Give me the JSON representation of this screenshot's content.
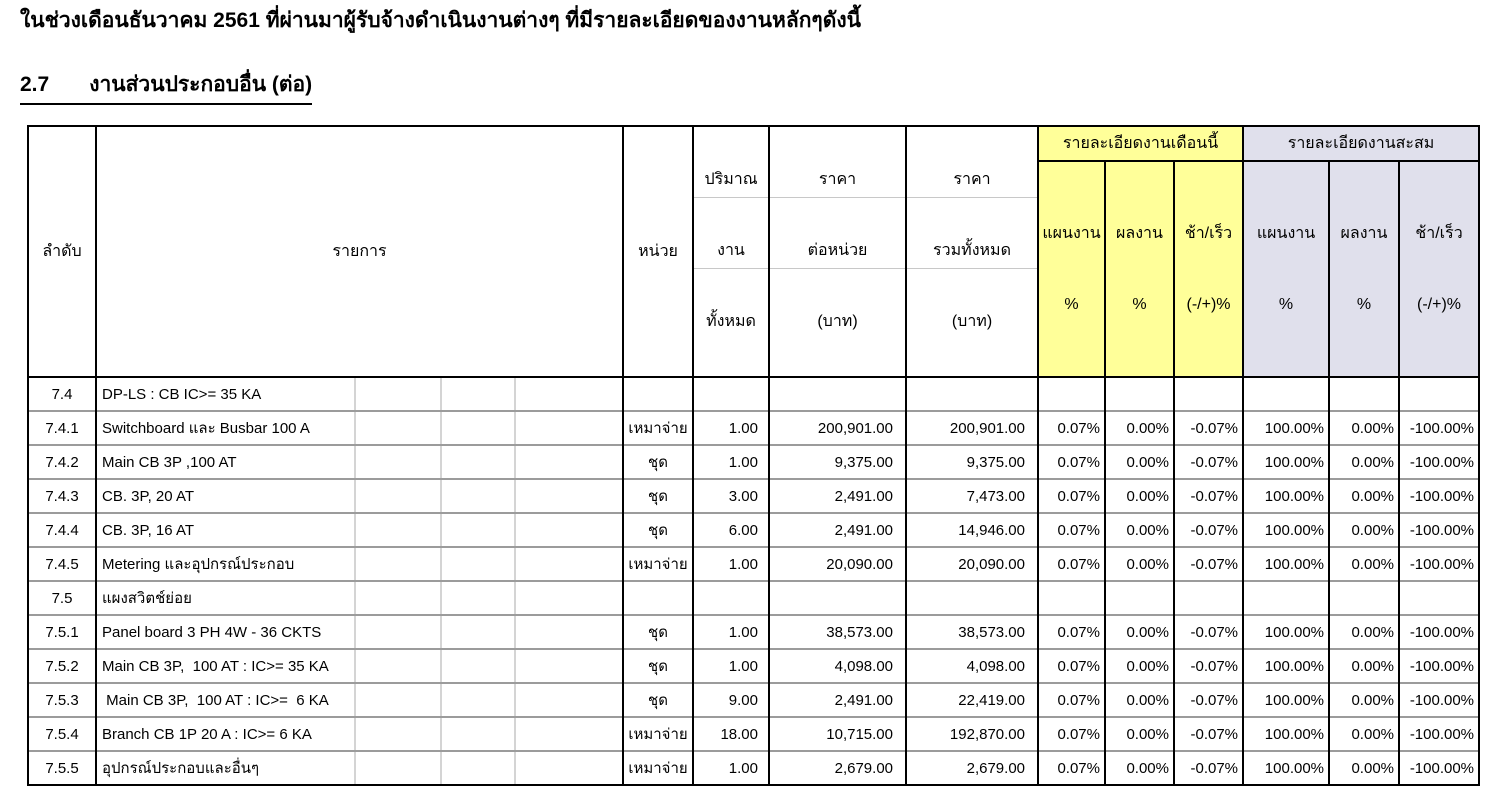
{
  "page": {
    "intro": "ในช่วงเดือนธันวาคม 2561 ที่ผ่านมาผู้รับจ้างดำเนินงานต่างๆ ที่มีรายละเอียดของงานหลักๆดังนี้",
    "section_number": "2.7",
    "section_title": "งานส่วนประกอบอื่น (ต่อ)"
  },
  "table": {
    "headers": {
      "no": "ลำดับ",
      "item": "รายการ",
      "unit": "หน่วย",
      "qty_lines": [
        "ปริมาณ",
        "งาน",
        "ทั้งหมด"
      ],
      "unit_price_lines": [
        "ราคา",
        "ต่อหน่วย",
        "(บาท)"
      ],
      "total_price_lines": [
        "ราคา",
        "รวมทั้งหมด",
        "(บาท)"
      ],
      "month_group": "รายละเอียดงานเดือนนี้",
      "cum_group": "รายละเอียดงานสะสม",
      "plan": "แผนงาน",
      "actual": "ผลงาน",
      "diff": "ช้า/เร็ว",
      "pct": "%",
      "diff_pct": "(-/+)%"
    },
    "colors": {
      "month_group_bg": "#FFFF99",
      "cum_group_bg": "#E0E0EC"
    },
    "rows": [
      {
        "no": "7.4",
        "item": "DP-LS : CB IC>= 35 KA",
        "unit": "",
        "qty": "",
        "unit_price": "",
        "total_price": "",
        "m_plan": "",
        "m_actual": "",
        "m_diff": "",
        "c_plan": "",
        "c_actual": "",
        "c_diff": ""
      },
      {
        "no": "7.4.1",
        "item": "Switchboard และ Busbar 100 A",
        "unit": "เหมาจ่าย",
        "qty": "1.00",
        "unit_price": "200,901.00",
        "total_price": "200,901.00",
        "m_plan": "0.07%",
        "m_actual": "0.00%",
        "m_diff": "-0.07%",
        "c_plan": "100.00%",
        "c_actual": "0.00%",
        "c_diff": "-100.00%"
      },
      {
        "no": "7.4.2",
        "item": "Main CB 3P ,100 AT",
        "unit": "ชุด",
        "qty": "1.00",
        "unit_price": "9,375.00",
        "total_price": "9,375.00",
        "m_plan": "0.07%",
        "m_actual": "0.00%",
        "m_diff": "-0.07%",
        "c_plan": "100.00%",
        "c_actual": "0.00%",
        "c_diff": "-100.00%"
      },
      {
        "no": "7.4.3",
        "item": "CB. 3P, 20 AT",
        "unit": "ชุด",
        "qty": "3.00",
        "unit_price": "2,491.00",
        "total_price": "7,473.00",
        "m_plan": "0.07%",
        "m_actual": "0.00%",
        "m_diff": "-0.07%",
        "c_plan": "100.00%",
        "c_actual": "0.00%",
        "c_diff": "-100.00%"
      },
      {
        "no": "7.4.4",
        "item": "CB. 3P, 16 AT",
        "unit": "ชุด",
        "qty": "6.00",
        "unit_price": "2,491.00",
        "total_price": "14,946.00",
        "m_plan": "0.07%",
        "m_actual": "0.00%",
        "m_diff": "-0.07%",
        "c_plan": "100.00%",
        "c_actual": "0.00%",
        "c_diff": "-100.00%"
      },
      {
        "no": "7.4.5",
        "item": "Metering และอุปกรณ์ประกอบ",
        "unit": "เหมาจ่าย",
        "qty": "1.00",
        "unit_price": "20,090.00",
        "total_price": "20,090.00",
        "m_plan": "0.07%",
        "m_actual": "0.00%",
        "m_diff": "-0.07%",
        "c_plan": "100.00%",
        "c_actual": "0.00%",
        "c_diff": "-100.00%"
      },
      {
        "no": "7.5",
        "item": "แผงสวิตช์ย่อย",
        "unit": "",
        "qty": "",
        "unit_price": "",
        "total_price": "",
        "m_plan": "",
        "m_actual": "",
        "m_diff": "",
        "c_plan": "",
        "c_actual": "",
        "c_diff": ""
      },
      {
        "no": "7.5.1",
        "item": "Panel board 3 PH 4W - 36 CKTS",
        "unit": "ชุด",
        "qty": "1.00",
        "unit_price": "38,573.00",
        "total_price": "38,573.00",
        "m_plan": "0.07%",
        "m_actual": "0.00%",
        "m_diff": "-0.07%",
        "c_plan": "100.00%",
        "c_actual": "0.00%",
        "c_diff": "-100.00%"
      },
      {
        "no": "7.5.2",
        "item": "Main CB 3P,  100 AT : IC>= 35 KA",
        "unit": "ชุด",
        "qty": "1.00",
        "unit_price": "4,098.00",
        "total_price": "4,098.00",
        "m_plan": "0.07%",
        "m_actual": "0.00%",
        "m_diff": "-0.07%",
        "c_plan": "100.00%",
        "c_actual": "0.00%",
        "c_diff": "-100.00%"
      },
      {
        "no": "7.5.3",
        "item": " Main CB 3P,  100 AT : IC>=  6 KA",
        "unit": "ชุด",
        "qty": "9.00",
        "unit_price": "2,491.00",
        "total_price": "22,419.00",
        "m_plan": "0.07%",
        "m_actual": "0.00%",
        "m_diff": "-0.07%",
        "c_plan": "100.00%",
        "c_actual": "0.00%",
        "c_diff": "-100.00%"
      },
      {
        "no": "7.5.4",
        "item": "Branch CB 1P 20 A : IC>= 6 KA",
        "unit": "เหมาจ่าย",
        "qty": "18.00",
        "unit_price": "10,715.00",
        "total_price": "192,870.00",
        "m_plan": "0.07%",
        "m_actual": "0.00%",
        "m_diff": "-0.07%",
        "c_plan": "100.00%",
        "c_actual": "0.00%",
        "c_diff": "-100.00%"
      },
      {
        "no": "7.5.5",
        "item": "อุปกรณ์ประกอบและอื่นๆ",
        "unit": "เหมาจ่าย",
        "qty": "1.00",
        "unit_price": "2,679.00",
        "total_price": "2,679.00",
        "m_plan": "0.07%",
        "m_actual": "0.00%",
        "m_diff": "-0.07%",
        "c_plan": "100.00%",
        "c_actual": "0.00%",
        "c_diff": "-100.00%"
      }
    ]
  }
}
